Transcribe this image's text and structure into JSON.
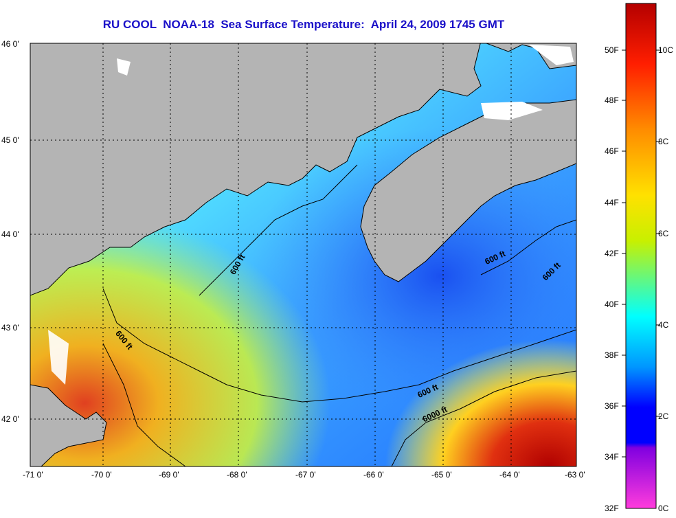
{
  "title": "RU COOL  NOAA-18  Sea Surface Temperature:  April 24, 2009 1745 GMT",
  "map": {
    "x_axis_labels": [
      "-71 0'",
      "-70 0'",
      "-69 0'",
      "-68 0'",
      "-67 0'",
      "-66 0'",
      "-65 0'",
      "-64 0'",
      "-63 0'"
    ],
    "y_axis_labels": [
      "46 0'",
      "45 0'",
      "44 0'",
      "43 0'",
      "42 0'"
    ],
    "depth_labels": [
      "600 ft",
      "600 ft",
      "600 ft",
      "600 ft",
      "600 ft",
      "6000 ft"
    ],
    "colors": {
      "land": "#b4b4b4",
      "coastline": "#000000",
      "cloud": "#ffffff",
      "grid": "#000000"
    }
  },
  "colorbar": {
    "fahrenheit_labels": [
      "50F",
      "48F",
      "46F",
      "44F",
      "42F",
      "40F",
      "38F",
      "36F",
      "34F",
      "32F"
    ],
    "celsius_labels": [
      "10C",
      "8C",
      "6C",
      "4C",
      "2C",
      "0C"
    ],
    "stops": [
      "#b40000",
      "#ff1e00",
      "#ff8c00",
      "#ffe100",
      "#c8f000",
      "#00ffff",
      "#0096ff",
      "#0000ff",
      "#9600ff",
      "#ff3cdc"
    ]
  }
}
